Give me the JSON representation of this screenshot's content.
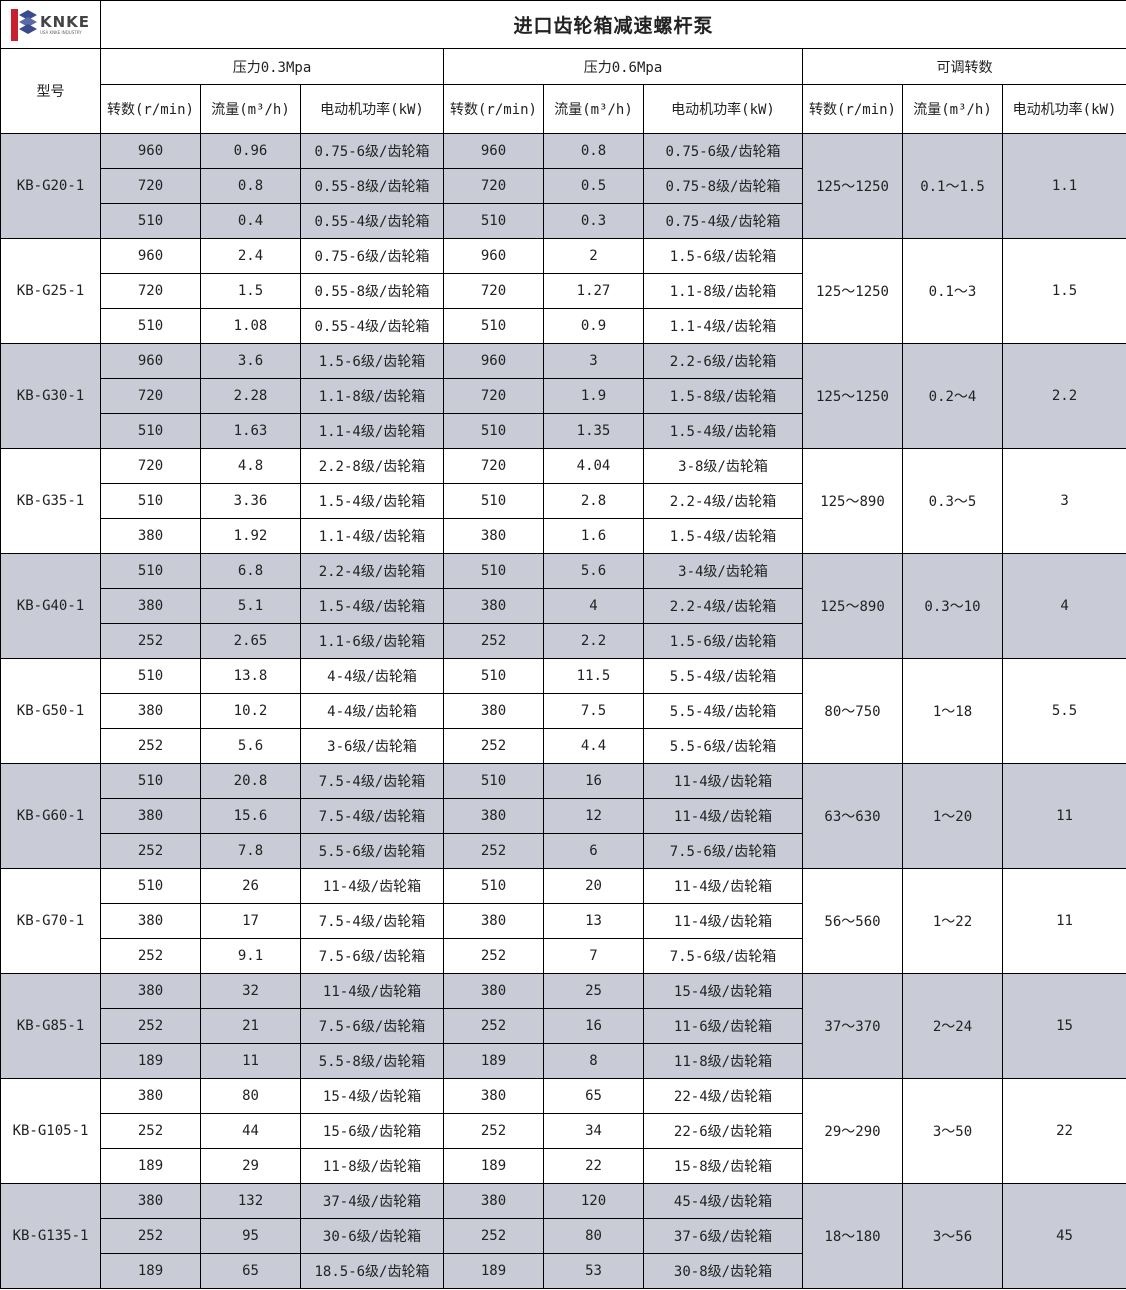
{
  "logo": {
    "text": "KNKE",
    "subtitle": "USA KNKE INDUSTRY",
    "colors": {
      "red": "#c8202f",
      "blue": "#3a4a8c"
    }
  },
  "title": "进口齿轮箱减速螺杆泵",
  "headers": {
    "model": "型号",
    "groups": [
      "压力0.3Mpa",
      "压力0.6Mpa",
      "可调转数"
    ],
    "columns": [
      "转数(r/min)",
      "流量(m³/h)",
      "电动机功率(kW)",
      "转数(r/min)",
      "流量(m³/h)",
      "电动机功率(kW)",
      "转数(r/min)",
      "流量(m³/h)",
      "电动机功率(kW)"
    ]
  },
  "shade_color": "#c9ccd6",
  "models": [
    {
      "model": "KB-G20-1",
      "rows": [
        [
          "960",
          "0.96",
          "0.75-6级/齿轮箱",
          "960",
          "0.8",
          "0.75-6级/齿轮箱"
        ],
        [
          "720",
          "0.8",
          "0.55-8级/齿轮箱",
          "720",
          "0.5",
          "0.75-8级/齿轮箱"
        ],
        [
          "510",
          "0.4",
          "0.55-4级/齿轮箱",
          "510",
          "0.3",
          "0.75-4级/齿轮箱"
        ]
      ],
      "adj": [
        "125～1250",
        "0.1～1.5",
        "1.1"
      ]
    },
    {
      "model": "KB-G25-1",
      "rows": [
        [
          "960",
          "2.4",
          "0.75-6级/齿轮箱",
          "960",
          "2",
          "1.5-6级/齿轮箱"
        ],
        [
          "720",
          "1.5",
          "0.55-8级/齿轮箱",
          "720",
          "1.27",
          "1.1-8级/齿轮箱"
        ],
        [
          "510",
          "1.08",
          "0.55-4级/齿轮箱",
          "510",
          "0.9",
          "1.1-4级/齿轮箱"
        ]
      ],
      "adj": [
        "125～1250",
        "0.1～3",
        "1.5"
      ]
    },
    {
      "model": "KB-G30-1",
      "rows": [
        [
          "960",
          "3.6",
          "1.5-6级/齿轮箱",
          "960",
          "3",
          "2.2-6级/齿轮箱"
        ],
        [
          "720",
          "2.28",
          "1.1-8级/齿轮箱",
          "720",
          "1.9",
          "1.5-8级/齿轮箱"
        ],
        [
          "510",
          "1.63",
          "1.1-4级/齿轮箱",
          "510",
          "1.35",
          "1.5-4级/齿轮箱"
        ]
      ],
      "adj": [
        "125～1250",
        "0.2～4",
        "2.2"
      ]
    },
    {
      "model": "KB-G35-1",
      "rows": [
        [
          "720",
          "4.8",
          "2.2-8级/齿轮箱",
          "720",
          "4.04",
          "3-8级/齿轮箱"
        ],
        [
          "510",
          "3.36",
          "1.5-4级/齿轮箱",
          "510",
          "2.8",
          "2.2-4级/齿轮箱"
        ],
        [
          "380",
          "1.92",
          "1.1-4级/齿轮箱",
          "380",
          "1.6",
          "1.5-4级/齿轮箱"
        ]
      ],
      "adj": [
        "125～890",
        "0.3～5",
        "3"
      ]
    },
    {
      "model": "KB-G40-1",
      "rows": [
        [
          "510",
          "6.8",
          "2.2-4级/齿轮箱",
          "510",
          "5.6",
          "3-4级/齿轮箱"
        ],
        [
          "380",
          "5.1",
          "1.5-4级/齿轮箱",
          "380",
          "4",
          "2.2-4级/齿轮箱"
        ],
        [
          "252",
          "2.65",
          "1.1-6级/齿轮箱",
          "252",
          "2.2",
          "1.5-6级/齿轮箱"
        ]
      ],
      "adj": [
        "125～890",
        "0.3～10",
        "4"
      ]
    },
    {
      "model": "KB-G50-1",
      "rows": [
        [
          "510",
          "13.8",
          "4-4级/齿轮箱",
          "510",
          "11.5",
          "5.5-4级/齿轮箱"
        ],
        [
          "380",
          "10.2",
          "4-4级/齿轮箱",
          "380",
          "7.5",
          "5.5-4级/齿轮箱"
        ],
        [
          "252",
          "5.6",
          "3-6级/齿轮箱",
          "252",
          "4.4",
          "5.5-6级/齿轮箱"
        ]
      ],
      "adj": [
        "80～750",
        "1～18",
        "5.5"
      ]
    },
    {
      "model": "KB-G60-1",
      "rows": [
        [
          "510",
          "20.8",
          "7.5-4级/齿轮箱",
          "510",
          "16",
          "11-4级/齿轮箱"
        ],
        [
          "380",
          "15.6",
          "7.5-4级/齿轮箱",
          "380",
          "12",
          "11-4级/齿轮箱"
        ],
        [
          "252",
          "7.8",
          "5.5-6级/齿轮箱",
          "252",
          "6",
          "7.5-6级/齿轮箱"
        ]
      ],
      "adj": [
        "63～630",
        "1～20",
        "11"
      ]
    },
    {
      "model": "KB-G70-1",
      "rows": [
        [
          "510",
          "26",
          "11-4级/齿轮箱",
          "510",
          "20",
          "11-4级/齿轮箱"
        ],
        [
          "380",
          "17",
          "7.5-4级/齿轮箱",
          "380",
          "13",
          "11-4级/齿轮箱"
        ],
        [
          "252",
          "9.1",
          "7.5-6级/齿轮箱",
          "252",
          "7",
          "7.5-6级/齿轮箱"
        ]
      ],
      "adj": [
        "56～560",
        "1～22",
        "11"
      ]
    },
    {
      "model": "KB-G85-1",
      "rows": [
        [
          "380",
          "32",
          "11-4级/齿轮箱",
          "380",
          "25",
          "15-4级/齿轮箱"
        ],
        [
          "252",
          "21",
          "7.5-6级/齿轮箱",
          "252",
          "16",
          "11-6级/齿轮箱"
        ],
        [
          "189",
          "11",
          "5.5-8级/齿轮箱",
          "189",
          "8",
          "11-8级/齿轮箱"
        ]
      ],
      "adj": [
        "37～370",
        "2～24",
        "15"
      ]
    },
    {
      "model": "KB-G105-1",
      "rows": [
        [
          "380",
          "80",
          "15-4级/齿轮箱",
          "380",
          "65",
          "22-4级/齿轮箱"
        ],
        [
          "252",
          "44",
          "15-6级/齿轮箱",
          "252",
          "34",
          "22-6级/齿轮箱"
        ],
        [
          "189",
          "29",
          "11-8级/齿轮箱",
          "189",
          "22",
          "15-8级/齿轮箱"
        ]
      ],
      "adj": [
        "29～290",
        "3～50",
        "22"
      ]
    },
    {
      "model": "KB-G135-1",
      "rows": [
        [
          "380",
          "132",
          "37-4级/齿轮箱",
          "380",
          "120",
          "45-4级/齿轮箱"
        ],
        [
          "252",
          "95",
          "30-6级/齿轮箱",
          "252",
          "80",
          "37-6级/齿轮箱"
        ],
        [
          "189",
          "65",
          "18.5-6级/齿轮箱",
          "189",
          "53",
          "30-8级/齿轮箱"
        ]
      ],
      "adj": [
        "18～180",
        "3～56",
        "45"
      ]
    }
  ]
}
